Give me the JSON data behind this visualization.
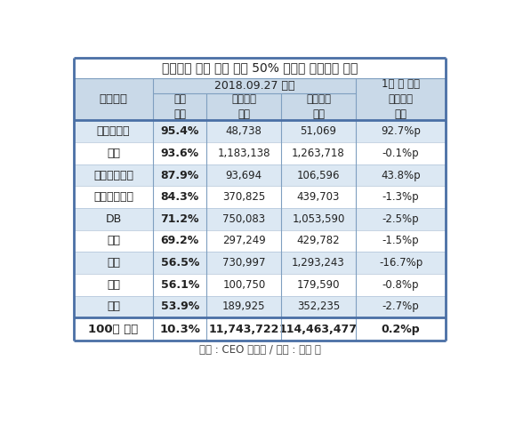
{
  "title": "총수일가 지분 담보 비중 50% 이상인 기업집단 현황",
  "subtitle_date": "2018.09.27 기준",
  "col_headers": [
    "기업집단",
    "담보\n비중",
    "담보주식\n가치",
    "보유주식\n가치",
    "1년 전 대비\n담보비중\n증감"
  ],
  "rows": [
    [
      "한진중공업",
      "95.4%",
      "48,738",
      "51,069",
      "92.7%p"
    ],
    [
      "두산",
      "93.6%",
      "1,183,138",
      "1,263,718",
      "-0.1%p"
    ],
    [
      "아이에스동서",
      "87.9%",
      "93,694",
      "106,596",
      "43.8%p"
    ],
    [
      "금호석유화학",
      "84.3%",
      "370,825",
      "439,703",
      "-1.3%p"
    ],
    [
      "DB",
      "71.2%",
      "750,083",
      "1,053,590",
      "-2.5%p"
    ],
    [
      "현대",
      "69.2%",
      "297,249",
      "429,782",
      "-1.5%p"
    ],
    [
      "효성",
      "56.5%",
      "730,997",
      "1,293,243",
      "-16.7%p"
    ],
    [
      "유진",
      "56.1%",
      "100,750",
      "179,590",
      "-0.8%p"
    ],
    [
      "한진",
      "53.9%",
      "189,925",
      "352,235",
      "-2.7%p"
    ]
  ],
  "footer_row": [
    "100대 그룹",
    "10.3%",
    "11,743,722",
    "114,463,477",
    "0.2%p"
  ],
  "source": "출처 : CEO 스코어 / 단위 : 백만 원",
  "header_bg": "#c9d9e8",
  "row_bg_odd": "#dce8f3",
  "row_bg_even": "#ffffff",
  "border_color_outer": "#4a6fa5",
  "border_color_inner": "#7f9fc0",
  "text_color": "#222222"
}
